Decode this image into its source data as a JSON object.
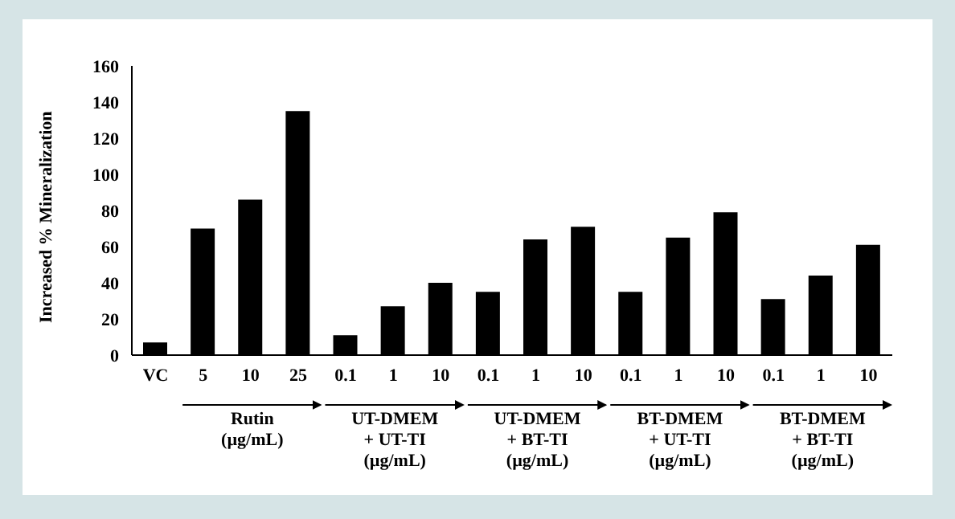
{
  "chart_data": {
    "type": "bar",
    "ylabel": "Increased % Mineralization",
    "categories": [
      "VC",
      "5",
      "10",
      "25",
      "0.1",
      "1",
      "10",
      "0.1",
      "1",
      "10",
      "0.1",
      "1",
      "10",
      "0.1",
      "1",
      "10"
    ],
    "values": [
      7,
      70,
      86,
      135,
      11,
      27,
      40,
      35,
      64,
      71,
      35,
      65,
      79,
      31,
      44,
      61
    ],
    "color": "#000000",
    "ylim": [
      0,
      160
    ],
    "yticks": [
      0,
      20,
      40,
      60,
      80,
      100,
      120,
      140,
      160
    ],
    "grid": false,
    "annotations": [
      "Rutin\n(µg/mL)",
      "UT-DMEM\n+ UT-TI\n(µg/mL)",
      "UT-DMEM\n+ BT-TI\n(µg/mL)",
      "BT-DMEM\n+ UT-TI\n(µg/mL)",
      "BT-DMEM\n+ BT-TI\n(µg/mL)"
    ]
  }
}
